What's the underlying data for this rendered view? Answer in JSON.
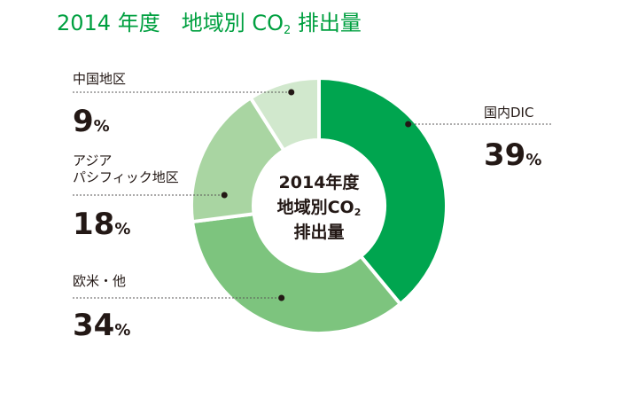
{
  "title": {
    "main": "2014 年度　地域別 CO",
    "subscript": "2",
    "suffix": " 排出量"
  },
  "center_label": {
    "line1": "2014年度",
    "line2_main": "地域別CO",
    "line2_sub": "2",
    "line3": "排出量"
  },
  "colors": {
    "title": "#00a040",
    "separator": "#ffffff",
    "leader": "#595757"
  },
  "chart_data": {
    "type": "pie",
    "donut": true,
    "title": "2014 年度　地域別 CO2 排出量",
    "unit": "%",
    "slices": [
      {
        "label_lines": [
          "国内DIC"
        ],
        "label": "国内DIC",
        "value": 39,
        "color": "#00a54f"
      },
      {
        "label_lines": [
          "欧米・他"
        ],
        "label": "欧米・他",
        "value": 34,
        "color": "#7dc47e"
      },
      {
        "label_lines": [
          "アジア",
          "パシフィック地区"
        ],
        "label": "アジア パシフィック地区",
        "value": 18,
        "color": "#a9d5a2"
      },
      {
        "label_lines": [
          "中国地区"
        ],
        "label": "中国地区",
        "value": 9,
        "color": "#d1e8cd"
      }
    ]
  }
}
